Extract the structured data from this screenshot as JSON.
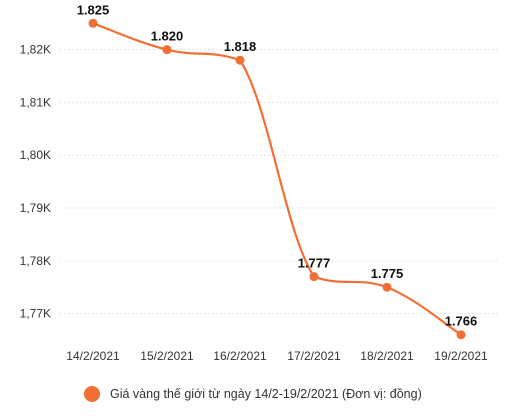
{
  "chart_data": {
    "type": "line",
    "categories": [
      "14/2/2021",
      "15/2/2021",
      "16/2/2021",
      "17/2/2021",
      "18/2/2021",
      "19/2/2021"
    ],
    "series": [
      {
        "name": "Giá vàng thế giới từ ngày 14/2-19/2/2021 (Đơn vị: đồng)",
        "values": [
          1825,
          1820,
          1818,
          1777,
          1775,
          1766
        ],
        "labels": [
          "1.825",
          "1.820",
          "1.818",
          "1.777",
          "1.775",
          "1.766"
        ]
      }
    ],
    "yticks": [
      1770,
      1780,
      1790,
      1800,
      1810,
      1820
    ],
    "ytick_labels": [
      "1,77K",
      "1,78K",
      "1,79K",
      "1,80K",
      "1,81K",
      "1,82K"
    ],
    "ylim": [
      1765,
      1826
    ],
    "grid": true,
    "legend": "bottom",
    "color": "#f07033"
  }
}
